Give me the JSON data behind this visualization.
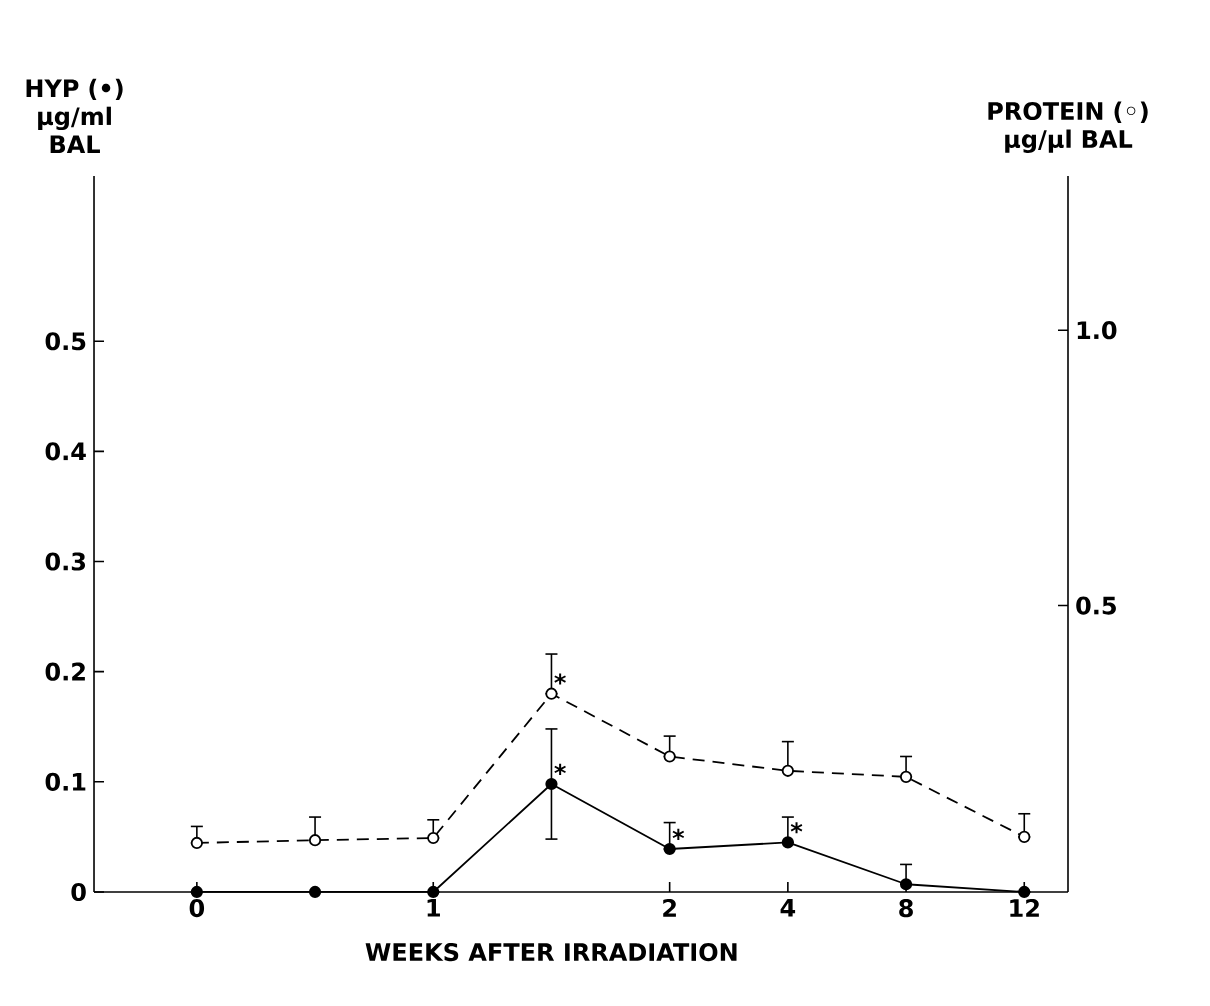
{
  "chart_data": {
    "type": "line",
    "xlabel": "WEEKS AFTER IRRADIATION",
    "ylabel": "HYP (•) μg/ml BAL",
    "y2label": "PROTEIN (◦) μg/μl BAL",
    "categories": [
      "0",
      null,
      "1",
      null,
      "2",
      "4",
      "8",
      "12"
    ],
    "series": [
      {
        "color": "#000000",
        "marker": "circle",
        "line_style": "solid",
        "values": [
          0,
          0,
          0,
          0.098,
          0.039,
          0.045,
          0.007,
          0
        ],
        "errors": [
          null,
          null,
          null,
          0.05,
          [
            0.039,
            0.063
          ],
          [
            0.045,
            0.068
          ],
          [
            0.007,
            0.025
          ],
          null
        ],
        "value_labels": [
          null,
          null,
          null,
          "*",
          "*",
          "*",
          null,
          null
        ]
      },
      {
        "color": "#000000",
        "marker": "circle",
        "line_style": "dashed",
        "axis": "y2",
        "values": [
          0.069,
          0.074,
          0.078,
          0.34,
          0.226,
          0.2,
          0.189,
          0.08
        ],
        "errors": [
          [
            0.069,
            0.099
          ],
          [
            0.074,
            0.116
          ],
          [
            0.078,
            0.111
          ],
          [
            0.34,
            0.412
          ],
          [
            0.226,
            0.263
          ],
          [
            0.2,
            0.253
          ],
          [
            0.189,
            0.226
          ],
          [
            0.08,
            0.122
          ]
        ],
        "value_labels": [
          null,
          null,
          null,
          "*",
          null,
          null,
          null,
          null
        ]
      }
    ],
    "ylim": [
      0,
      0.65
    ],
    "yticks": [
      0,
      0.1,
      0.2,
      0.3,
      0.4,
      0.5
    ],
    "y2lim": [
      -0.02,
      1.28
    ],
    "y2ticks": [
      0.5,
      {
        "value": 1,
        "label": "1.0"
      }
    ]
  }
}
